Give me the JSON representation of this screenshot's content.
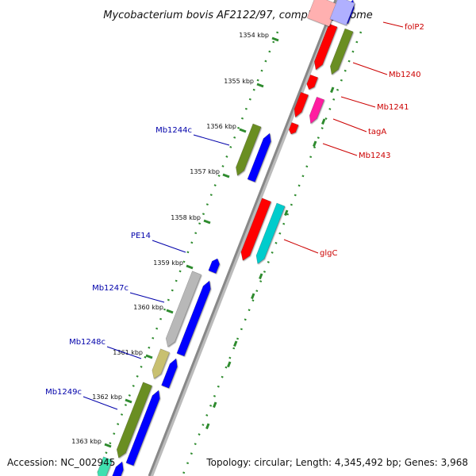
{
  "title": "Mycobacterium bovis AF2122/97, complete genome",
  "footer": {
    "accession": "Accession: NC_002945",
    "summary": "Topology: circular; Length: 4,345,492 bp; Genes: 3,968"
  },
  "colors": {
    "backbone": "#888888",
    "tick": "#2e8b2e",
    "forward_label": "#cc0000",
    "reverse_label": "#0000aa",
    "red": "#ff0000",
    "magenta": "#ff1aa0",
    "olive": "#6b8e23",
    "blue": "#0000ff",
    "cyan": "#00cccc",
    "gray": "#b8b8b8",
    "khaki": "#c8c070",
    "teal": "#40e0b0",
    "pink": "#ffb0b0",
    "lavender": "#b0b0ff"
  },
  "ticks": [
    "1354 kbp",
    "1355 kbp",
    "1356 kbp",
    "1357 kbp",
    "1358 kbp",
    "1359 kbp",
    "1360 kbp",
    "1361 kbp",
    "1362 kbp",
    "1363 kbp"
  ],
  "labels_right": [
    "folP2",
    "Mb1240",
    "Mb1241",
    "tagA",
    "Mb1243",
    "glgC"
  ],
  "labels_left": [
    "Mb1244c",
    "PE14",
    "Mb1247c",
    "Mb1248c",
    "Mb1249c"
  ]
}
